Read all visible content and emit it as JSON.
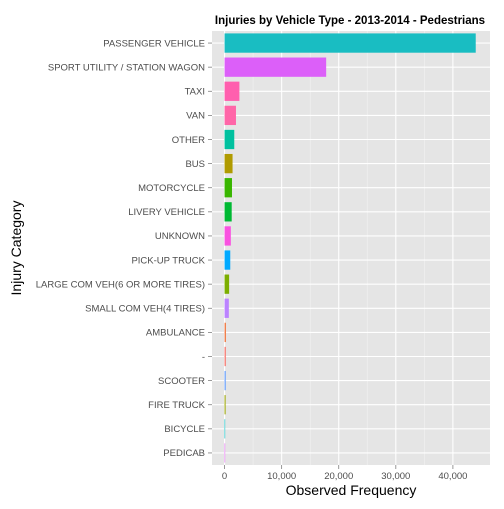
{
  "chart_data": {
    "type": "bar",
    "orientation": "horizontal",
    "title": "Injuries by Vehicle Type - 2013-2014 - Pedestrians",
    "xlabel": "Observed Frequency",
    "ylabel": "Injury Category",
    "xlim": [
      -2200,
      46500
    ],
    "x_ticks": [
      0,
      10000,
      20000,
      30000,
      40000
    ],
    "x_tick_labels": [
      "0",
      "10,000",
      "20,000",
      "30,000",
      "40,000"
    ],
    "grid": true,
    "legend": "none",
    "categories": [
      "PASSENGER VEHICLE",
      "SPORT UTILITY / STATION WAGON",
      "TAXI",
      "VAN",
      "OTHER",
      "BUS",
      "MOTORCYCLE",
      "LIVERY VEHICLE",
      "UNKNOWN",
      "PICK-UP TRUCK",
      "LARGE COM VEH(6 OR MORE TIRES)",
      "SMALL COM VEH(4 TIRES)",
      "AMBULANCE",
      "-",
      "SCOOTER",
      "FIRE TRUCK",
      "BICYCLE",
      "PEDICAB"
    ],
    "values": [
      44000,
      17800,
      2600,
      2000,
      1700,
      1400,
      1300,
      1250,
      1100,
      1000,
      800,
      750,
      250,
      220,
      200,
      180,
      40,
      15
    ],
    "colors": [
      "#19BDC2",
      "#DC5FF9",
      "#FF5FAE",
      "#FF66A8",
      "#00C19F",
      "#B09B00",
      "#39B600",
      "#00B933",
      "#F952E0",
      "#00A9FF",
      "#7CAE00",
      "#BB83FF",
      "#F07E4B",
      "#F8766D",
      "#619CFF",
      "#9CA700",
      "#00BFC4",
      "#E76BF3"
    ]
  }
}
